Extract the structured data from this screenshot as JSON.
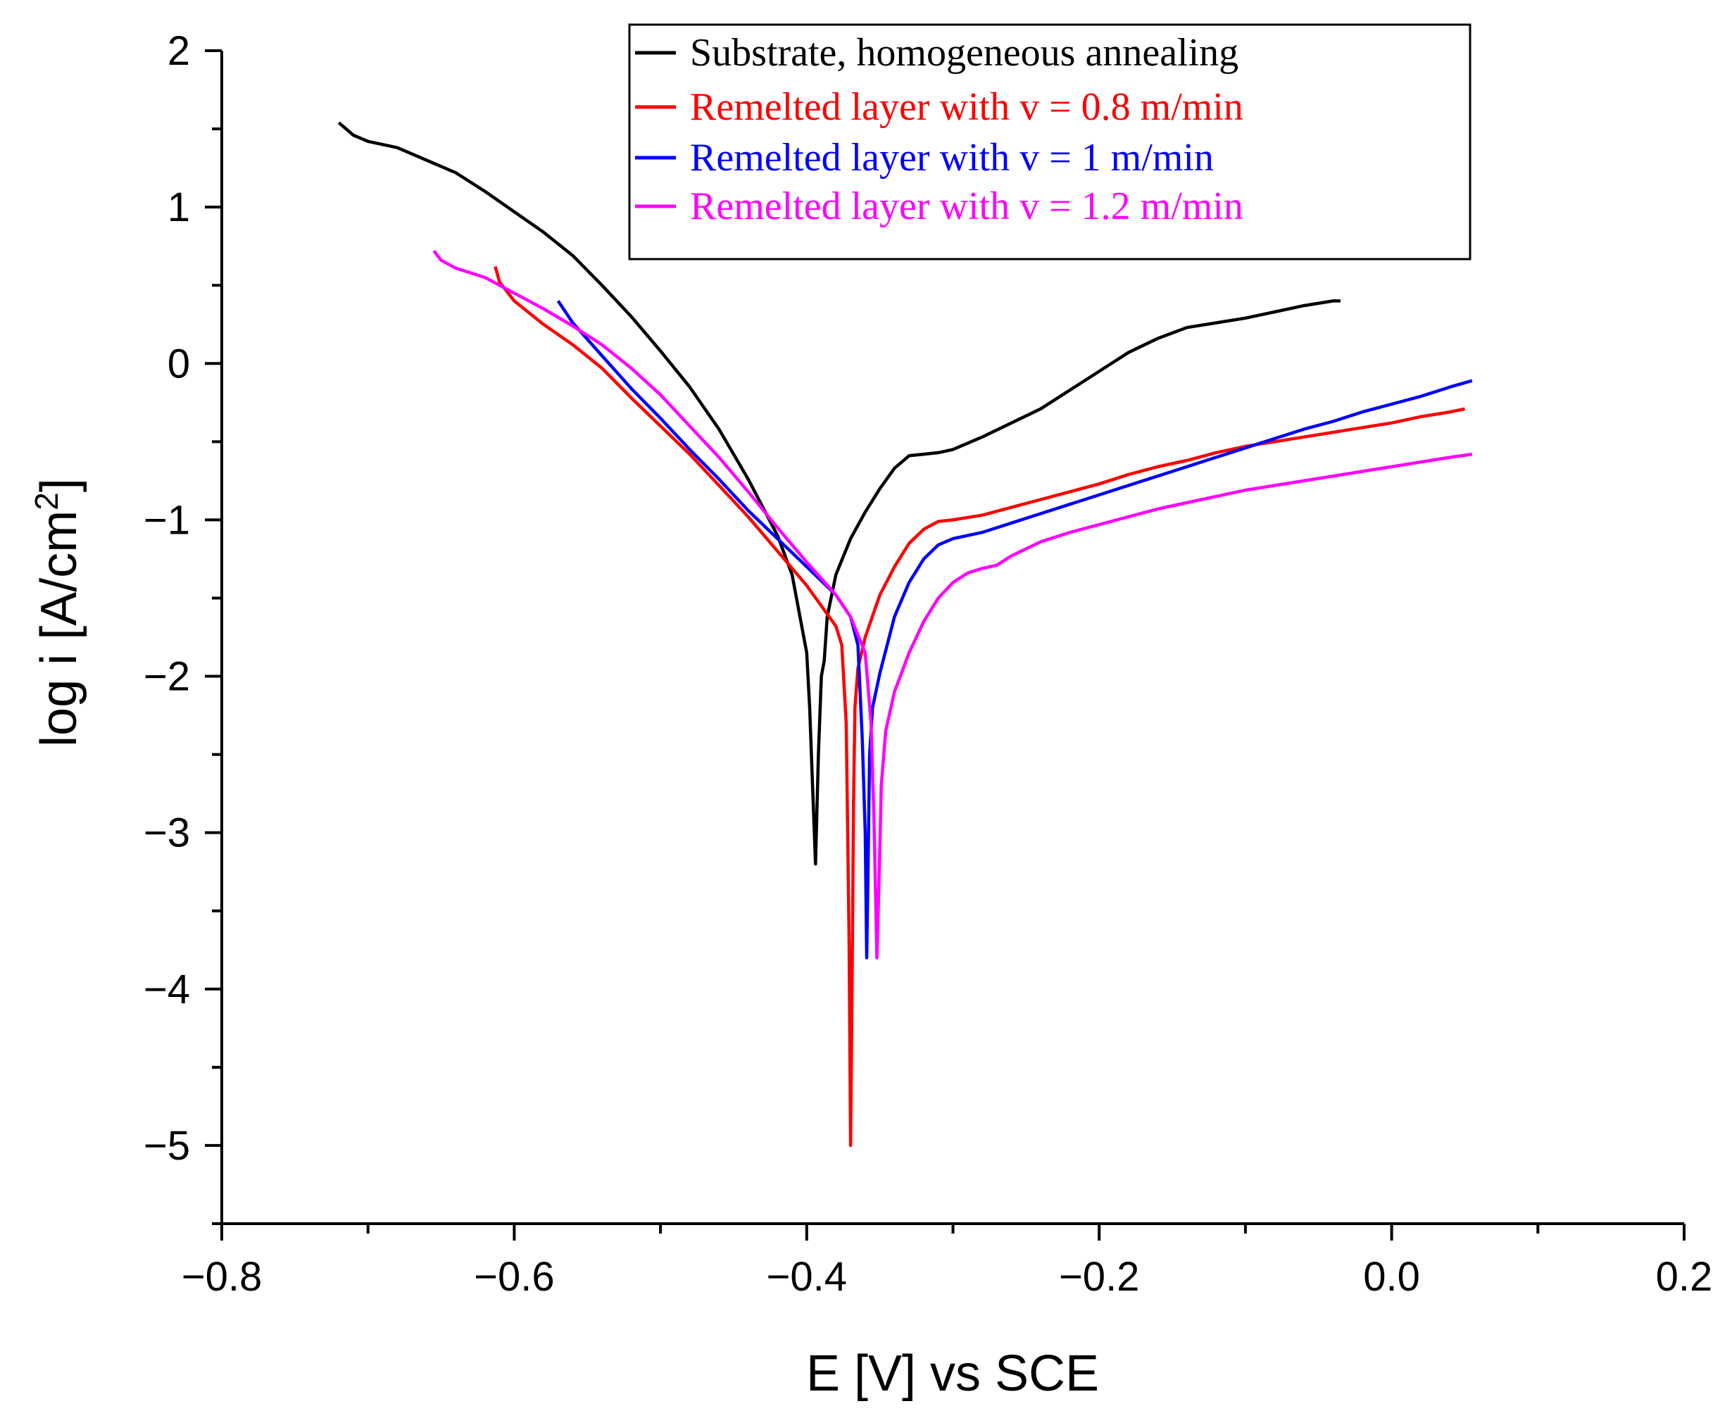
{
  "chart_data": {
    "type": "line",
    "title": "",
    "xlabel": "E [V] vs SCE",
    "ylabel_main": "log i [A/cm",
    "ylabel_sup": "2",
    "ylabel_end": "]",
    "xlim": [
      -0.8,
      0.2
    ],
    "ylim": [
      -5.5,
      2
    ],
    "x_ticks": [
      -0.8,
      -0.6,
      -0.4,
      -0.2,
      0.0,
      0.2
    ],
    "x_tick_labels": [
      "−0.8",
      "−0.6",
      "−0.4",
      "−0.2",
      "0.0",
      "0.2"
    ],
    "y_ticks": [
      2,
      1,
      0,
      -1,
      -2,
      -3,
      -4,
      -5
    ],
    "y_tick_labels": [
      "2",
      "1",
      "0",
      "−1",
      "−2",
      "−3",
      "−4",
      "−5"
    ],
    "grid": false,
    "legend_position": "top-right",
    "series": [
      {
        "name": "Substrate, homogeneous annealing",
        "color": "#000000",
        "points": [
          [
            -0.72,
            1.54
          ],
          [
            -0.71,
            1.46
          ],
          [
            -0.7,
            1.42
          ],
          [
            -0.68,
            1.38
          ],
          [
            -0.66,
            1.3
          ],
          [
            -0.64,
            1.22
          ],
          [
            -0.62,
            1.1
          ],
          [
            -0.6,
            0.97
          ],
          [
            -0.58,
            0.84
          ],
          [
            -0.56,
            0.69
          ],
          [
            -0.54,
            0.5
          ],
          [
            -0.52,
            0.3
          ],
          [
            -0.5,
            0.08
          ],
          [
            -0.48,
            -0.15
          ],
          [
            -0.46,
            -0.42
          ],
          [
            -0.44,
            -0.74
          ],
          [
            -0.42,
            -1.1
          ],
          [
            -0.41,
            -1.35
          ],
          [
            -0.405,
            -1.6
          ],
          [
            -0.4,
            -1.85
          ],
          [
            -0.398,
            -2.2
          ],
          [
            -0.396,
            -2.7
          ],
          [
            -0.394,
            -3.2
          ],
          [
            -0.392,
            -2.5
          ],
          [
            -0.39,
            -2.0
          ],
          [
            -0.388,
            -1.9
          ],
          [
            -0.386,
            -1.62
          ],
          [
            -0.38,
            -1.35
          ],
          [
            -0.37,
            -1.12
          ],
          [
            -0.36,
            -0.95
          ],
          [
            -0.35,
            -0.8
          ],
          [
            -0.34,
            -0.67
          ],
          [
            -0.33,
            -0.59
          ],
          [
            -0.32,
            -0.58
          ],
          [
            -0.31,
            -0.57
          ],
          [
            -0.3,
            -0.55
          ],
          [
            -0.28,
            -0.47
          ],
          [
            -0.26,
            -0.38
          ],
          [
            -0.24,
            -0.29
          ],
          [
            -0.22,
            -0.17
          ],
          [
            -0.2,
            -0.05
          ],
          [
            -0.18,
            0.07
          ],
          [
            -0.16,
            0.16
          ],
          [
            -0.14,
            0.23
          ],
          [
            -0.12,
            0.26
          ],
          [
            -0.1,
            0.29
          ],
          [
            -0.08,
            0.33
          ],
          [
            -0.06,
            0.37
          ],
          [
            -0.04,
            0.4
          ],
          [
            -0.035,
            0.4
          ]
        ]
      },
      {
        "name": "Remelted layer with v = 0.8 m/min",
        "color": "#ff0000",
        "points": [
          [
            -0.613,
            0.62
          ],
          [
            -0.61,
            0.52
          ],
          [
            -0.6,
            0.4
          ],
          [
            -0.58,
            0.25
          ],
          [
            -0.56,
            0.12
          ],
          [
            -0.54,
            -0.03
          ],
          [
            -0.52,
            -0.22
          ],
          [
            -0.5,
            -0.4
          ],
          [
            -0.48,
            -0.58
          ],
          [
            -0.46,
            -0.78
          ],
          [
            -0.44,
            -0.98
          ],
          [
            -0.42,
            -1.2
          ],
          [
            -0.4,
            -1.42
          ],
          [
            -0.39,
            -1.55
          ],
          [
            -0.38,
            -1.68
          ],
          [
            -0.376,
            -1.8
          ],
          [
            -0.373,
            -2.3
          ],
          [
            -0.372,
            -3.0
          ],
          [
            -0.371,
            -3.7
          ],
          [
            -0.37,
            -5.0
          ],
          [
            -0.369,
            -4.0
          ],
          [
            -0.368,
            -2.8
          ],
          [
            -0.367,
            -2.2
          ],
          [
            -0.365,
            -1.95
          ],
          [
            -0.36,
            -1.75
          ],
          [
            -0.35,
            -1.48
          ],
          [
            -0.34,
            -1.3
          ],
          [
            -0.33,
            -1.15
          ],
          [
            -0.32,
            -1.06
          ],
          [
            -0.31,
            -1.01
          ],
          [
            -0.3,
            -1.0
          ],
          [
            -0.28,
            -0.97
          ],
          [
            -0.26,
            -0.92
          ],
          [
            -0.24,
            -0.87
          ],
          [
            -0.22,
            -0.82
          ],
          [
            -0.2,
            -0.77
          ],
          [
            -0.18,
            -0.71
          ],
          [
            -0.16,
            -0.66
          ],
          [
            -0.14,
            -0.62
          ],
          [
            -0.12,
            -0.57
          ],
          [
            -0.1,
            -0.53
          ],
          [
            -0.08,
            -0.5
          ],
          [
            -0.06,
            -0.47
          ],
          [
            -0.04,
            -0.44
          ],
          [
            -0.02,
            -0.41
          ],
          [
            0.0,
            -0.38
          ],
          [
            0.02,
            -0.34
          ],
          [
            0.04,
            -0.31
          ],
          [
            0.05,
            -0.29
          ]
        ]
      },
      {
        "name": "Remelted layer with v = 1 m/min",
        "color": "#0000ff",
        "points": [
          [
            -0.57,
            0.4
          ],
          [
            -0.56,
            0.26
          ],
          [
            -0.54,
            0.05
          ],
          [
            -0.52,
            -0.16
          ],
          [
            -0.5,
            -0.35
          ],
          [
            -0.48,
            -0.55
          ],
          [
            -0.46,
            -0.74
          ],
          [
            -0.44,
            -0.94
          ],
          [
            -0.42,
            -1.12
          ],
          [
            -0.4,
            -1.3
          ],
          [
            -0.38,
            -1.48
          ],
          [
            -0.37,
            -1.62
          ],
          [
            -0.365,
            -1.8
          ],
          [
            -0.362,
            -2.4
          ],
          [
            -0.36,
            -3.0
          ],
          [
            -0.359,
            -3.8
          ],
          [
            -0.358,
            -3.2
          ],
          [
            -0.357,
            -2.5
          ],
          [
            -0.355,
            -2.2
          ],
          [
            -0.35,
            -1.98
          ],
          [
            -0.34,
            -1.62
          ],
          [
            -0.33,
            -1.4
          ],
          [
            -0.32,
            -1.25
          ],
          [
            -0.31,
            -1.16
          ],
          [
            -0.3,
            -1.12
          ],
          [
            -0.29,
            -1.1
          ],
          [
            -0.28,
            -1.08
          ],
          [
            -0.26,
            -1.02
          ],
          [
            -0.24,
            -0.96
          ],
          [
            -0.22,
            -0.9
          ],
          [
            -0.2,
            -0.84
          ],
          [
            -0.18,
            -0.78
          ],
          [
            -0.16,
            -0.72
          ],
          [
            -0.14,
            -0.66
          ],
          [
            -0.12,
            -0.6
          ],
          [
            -0.1,
            -0.54
          ],
          [
            -0.08,
            -0.48
          ],
          [
            -0.06,
            -0.42
          ],
          [
            -0.04,
            -0.37
          ],
          [
            -0.02,
            -0.31
          ],
          [
            0.0,
            -0.26
          ],
          [
            0.02,
            -0.21
          ],
          [
            0.04,
            -0.15
          ],
          [
            0.055,
            -0.11
          ]
        ]
      },
      {
        "name": "Remelted layer with v = 1.2 m/min",
        "color": "#ff00ff",
        "points": [
          [
            -0.655,
            0.72
          ],
          [
            -0.65,
            0.66
          ],
          [
            -0.64,
            0.61
          ],
          [
            -0.62,
            0.55
          ],
          [
            -0.6,
            0.45
          ],
          [
            -0.58,
            0.35
          ],
          [
            -0.56,
            0.24
          ],
          [
            -0.54,
            0.12
          ],
          [
            -0.52,
            -0.03
          ],
          [
            -0.5,
            -0.2
          ],
          [
            -0.48,
            -0.4
          ],
          [
            -0.46,
            -0.6
          ],
          [
            -0.44,
            -0.82
          ],
          [
            -0.42,
            -1.05
          ],
          [
            -0.4,
            -1.27
          ],
          [
            -0.38,
            -1.48
          ],
          [
            -0.37,
            -1.62
          ],
          [
            -0.36,
            -1.85
          ],
          [
            -0.356,
            -2.3
          ],
          [
            -0.354,
            -2.9
          ],
          [
            -0.352,
            -3.8
          ],
          [
            -0.35,
            -3.1
          ],
          [
            -0.349,
            -2.7
          ],
          [
            -0.346,
            -2.35
          ],
          [
            -0.34,
            -2.1
          ],
          [
            -0.33,
            -1.85
          ],
          [
            -0.32,
            -1.65
          ],
          [
            -0.31,
            -1.5
          ],
          [
            -0.3,
            -1.4
          ],
          [
            -0.29,
            -1.34
          ],
          [
            -0.28,
            -1.31
          ],
          [
            -0.27,
            -1.29
          ],
          [
            -0.26,
            -1.23
          ],
          [
            -0.24,
            -1.14
          ],
          [
            -0.22,
            -1.08
          ],
          [
            -0.2,
            -1.03
          ],
          [
            -0.18,
            -0.98
          ],
          [
            -0.16,
            -0.93
          ],
          [
            -0.14,
            -0.89
          ],
          [
            -0.12,
            -0.85
          ],
          [
            -0.1,
            -0.81
          ],
          [
            -0.08,
            -0.78
          ],
          [
            -0.06,
            -0.75
          ],
          [
            -0.04,
            -0.72
          ],
          [
            -0.02,
            -0.69
          ],
          [
            0.0,
            -0.66
          ],
          [
            0.02,
            -0.63
          ],
          [
            0.04,
            -0.6
          ],
          [
            0.055,
            -0.58
          ]
        ]
      }
    ]
  }
}
